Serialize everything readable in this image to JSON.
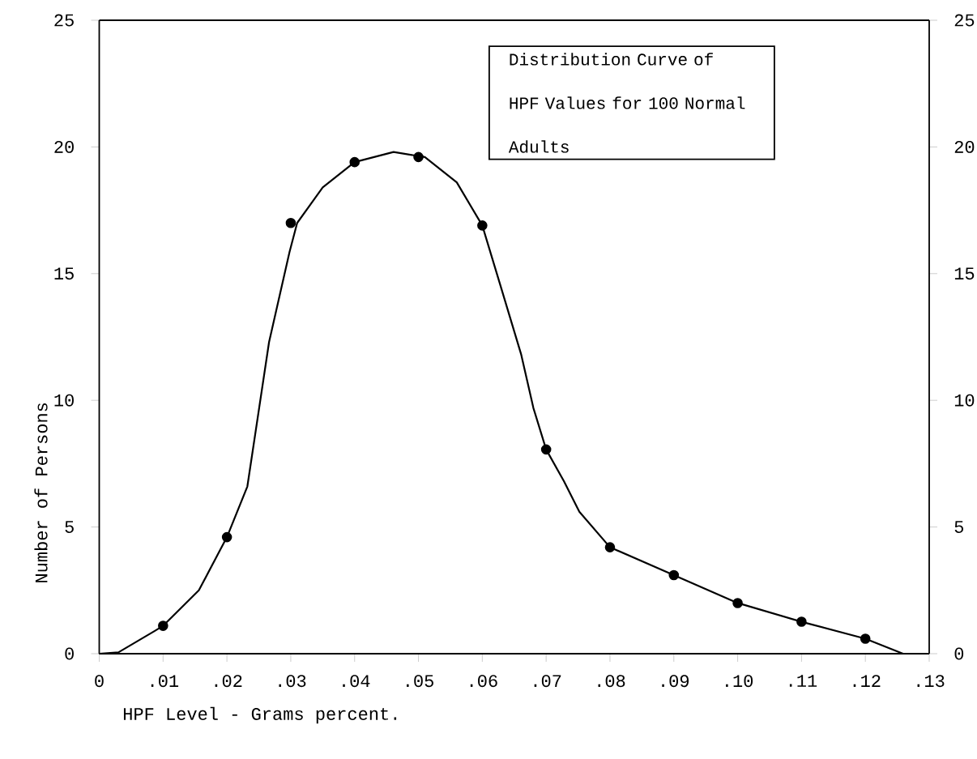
{
  "chart_data": {
    "type": "line",
    "title": "Distribution Curve of HPF Values for 100 Normal Adults",
    "xlabel": "HPF Level - Grams percent.",
    "ylabel": "Number of Persons",
    "series": [
      {
        "type": "line",
        "color": "#000000",
        "marker": "none",
        "x": [
          0,
          0.003,
          0.0087,
          0.01,
          0.0156,
          0.02,
          0.0232,
          0.0266,
          0.0298,
          0.031,
          0.035,
          0.04,
          0.0461,
          0.051,
          0.056,
          0.06,
          0.063,
          0.0661,
          0.068,
          0.07,
          0.0728,
          0.0752,
          0.08,
          0.09,
          0.1,
          0.11,
          0.12,
          0.1259
        ],
        "values": [
          0,
          0.05,
          0.9,
          1.1,
          2.5,
          4.6,
          6.6,
          12.3,
          15.85,
          17.0,
          18.4,
          19.4,
          19.8,
          19.6,
          18.6,
          16.9,
          14.4,
          11.8,
          9.7,
          8.06,
          6.8,
          5.6,
          4.2,
          3.1,
          2.0,
          1.26,
          0.59,
          0
        ]
      },
      {
        "type": "scatter",
        "color": "#000000",
        "marker": "circle",
        "x": [
          0.01,
          0.02,
          0.03,
          0.04,
          0.05,
          0.06,
          0.07,
          0.08,
          0.09,
          0.1,
          0.11,
          0.12
        ],
        "values": [
          1.1,
          4.6,
          17.0,
          19.4,
          19.6,
          16.9,
          8.06,
          4.2,
          3.1,
          2.0,
          1.26,
          0.59
        ]
      }
    ],
    "xlim": [
      0,
      0.13
    ],
    "xticks": [
      0,
      {
        "value": 0.01,
        "label": ".01"
      },
      {
        "value": 0.02,
        "label": ".02"
      },
      {
        "value": 0.03,
        "label": ".03"
      },
      {
        "value": 0.04,
        "label": ".04"
      },
      {
        "value": 0.05,
        "label": ".05"
      },
      {
        "value": 0.06,
        "label": ".06"
      },
      {
        "value": 0.07,
        "label": ".07"
      },
      {
        "value": 0.08,
        "label": ".08"
      },
      {
        "value": 0.09,
        "label": ".09"
      },
      {
        "value": 0.1,
        "label": ".10"
      },
      {
        "value": 0.11,
        "label": ".11"
      },
      {
        "value": 0.12,
        "label": ".12"
      },
      {
        "value": 0.13,
        "label": ".13"
      }
    ],
    "ylim": [
      0,
      25
    ],
    "yticks": [
      0,
      5,
      10,
      15,
      20,
      25
    ],
    "y2lim": [
      0,
      25
    ],
    "y2ticks": [
      0,
      5,
      10,
      15,
      20,
      25
    ],
    "grid": false
  }
}
